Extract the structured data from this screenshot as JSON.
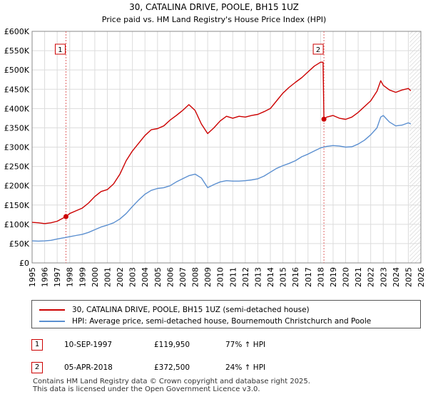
{
  "chart_data": {
    "type": "line",
    "title": "30, CATALINA DRIVE, POOLE, BH15 1UZ",
    "subtitle": "Price paid vs. HM Land Registry's House Price Index (HPI)",
    "xlabel": "",
    "ylabel": "",
    "xlim": [
      1995,
      2026
    ],
    "ylim": [
      0,
      600000
    ],
    "x_ticks": [
      "1995",
      "1996",
      "1997",
      "1998",
      "1999",
      "2000",
      "2001",
      "2002",
      "2003",
      "2004",
      "2005",
      "2006",
      "2007",
      "2008",
      "2009",
      "2010",
      "2011",
      "2012",
      "2013",
      "2014",
      "2015",
      "2016",
      "2017",
      "2018",
      "2019",
      "2020",
      "2021",
      "2022",
      "2023",
      "2024",
      "2025",
      "2026"
    ],
    "y_ticks": [
      {
        "value": 0,
        "label": "£0"
      },
      {
        "value": 50000,
        "label": "£50K"
      },
      {
        "value": 100000,
        "label": "£100K"
      },
      {
        "value": 150000,
        "label": "£150K"
      },
      {
        "value": 200000,
        "label": "£200K"
      },
      {
        "value": 250000,
        "label": "£250K"
      },
      {
        "value": 300000,
        "label": "£300K"
      },
      {
        "value": 350000,
        "label": "£350K"
      },
      {
        "value": 400000,
        "label": "£400K"
      },
      {
        "value": 450000,
        "label": "£450K"
      },
      {
        "value": 500000,
        "label": "£500K"
      },
      {
        "value": 550000,
        "label": "£550K"
      },
      {
        "value": 600000,
        "label": "£600K"
      }
    ],
    "grid": true,
    "hatched_region_start": 2025.1,
    "series": [
      {
        "name": "30, CATALINA DRIVE, POOLE, BH15 1UZ (semi-detached house)",
        "color": "#cc0000",
        "x": [
          1995,
          1995.5,
          1996,
          1996.5,
          1997,
          1997.4,
          1997.7,
          1998,
          1998.5,
          1999,
          1999.5,
          2000,
          2000.5,
          2001,
          2001.5,
          2002,
          2002.5,
          2003,
          2003.5,
          2004,
          2004.5,
          2005,
          2005.5,
          2006,
          2006.5,
          2007,
          2007.5,
          2008,
          2008.5,
          2009,
          2009.5,
          2010,
          2010.5,
          2011,
          2011.5,
          2012,
          2012.5,
          2013,
          2013.5,
          2014,
          2014.5,
          2015,
          2015.5,
          2016,
          2016.5,
          2017,
          2017.5,
          2018.0,
          2018.2,
          2018.27,
          2018.5,
          2019,
          2019.5,
          2020,
          2020.5,
          2021,
          2021.5,
          2022,
          2022.5,
          2022.8,
          2023,
          2023.5,
          2024,
          2024.5,
          2025,
          2025.2
        ],
        "y": [
          105000,
          104000,
          102000,
          104000,
          108000,
          115000,
          119950,
          128000,
          135000,
          142000,
          155000,
          172000,
          185000,
          190000,
          205000,
          230000,
          265000,
          290000,
          310000,
          330000,
          345000,
          348000,
          355000,
          370000,
          382000,
          395000,
          410000,
          395000,
          360000,
          335000,
          350000,
          368000,
          380000,
          375000,
          380000,
          378000,
          382000,
          385000,
          392000,
          400000,
          420000,
          440000,
          455000,
          468000,
          480000,
          495000,
          510000,
          520000,
          520000,
          372500,
          378000,
          382000,
          375000,
          372000,
          378000,
          390000,
          405000,
          420000,
          445000,
          472000,
          460000,
          448000,
          442000,
          448000,
          452000,
          446000
        ]
      },
      {
        "name": "HPI: Average price, semi-detached house, Bournemouth Christchurch and Poole",
        "color": "#5b8fd0",
        "x": [
          1995,
          1995.5,
          1996,
          1996.5,
          1997,
          1997.5,
          1998,
          1998.5,
          1999,
          1999.5,
          2000,
          2000.5,
          2001,
          2001.5,
          2002,
          2002.5,
          2003,
          2003.5,
          2004,
          2004.5,
          2005,
          2005.5,
          2006,
          2006.5,
          2007,
          2007.5,
          2008,
          2008.5,
          2009,
          2009.5,
          2010,
          2010.5,
          2011,
          2011.5,
          2012,
          2012.5,
          2013,
          2013.5,
          2014,
          2014.5,
          2015,
          2015.5,
          2016,
          2016.5,
          2017,
          2017.5,
          2018,
          2018.5,
          2019,
          2019.5,
          2020,
          2020.5,
          2021,
          2021.5,
          2022,
          2022.5,
          2022.8,
          2023,
          2023.5,
          2024,
          2024.5,
          2025,
          2025.2
        ],
        "y": [
          57000,
          56500,
          57000,
          58500,
          62000,
          65000,
          68000,
          71000,
          74000,
          79000,
          86000,
          93000,
          98000,
          104000,
          114000,
          128000,
          146000,
          163000,
          178000,
          188000,
          193000,
          195000,
          200000,
          210000,
          218000,
          226000,
          230000,
          220000,
          195000,
          203000,
          210000,
          213000,
          212000,
          212000,
          213000,
          215000,
          218000,
          225000,
          235000,
          245000,
          252000,
          258000,
          265000,
          275000,
          282000,
          290000,
          298000,
          302000,
          304000,
          303000,
          300000,
          301000,
          308000,
          318000,
          332000,
          350000,
          378000,
          382000,
          365000,
          355000,
          357000,
          363000,
          360000
        ]
      }
    ],
    "transactions": [
      {
        "label": "1",
        "x": 1997.7,
        "y": 119950,
        "date": "10-SEP-1997",
        "price": "£119,950",
        "hpi_change": "77% ↑ HPI"
      },
      {
        "label": "2",
        "x": 2018.27,
        "y": 372500,
        "date": "05-APR-2018",
        "price": "£372,500",
        "hpi_change": "24% ↑ HPI"
      }
    ]
  },
  "legend": {
    "items": [
      {
        "label": "30, CATALINA DRIVE, POOLE, BH15 1UZ (semi-detached house)",
        "color": "#cc0000"
      },
      {
        "label": "HPI: Average price, semi-detached house, Bournemouth Christchurch and Poole",
        "color": "#5b8fd0"
      }
    ]
  },
  "footer": {
    "line1": "Contains HM Land Registry data © Crown copyright and database right 2025.",
    "line2": "This data is licensed under the Open Government Licence v3.0."
  }
}
